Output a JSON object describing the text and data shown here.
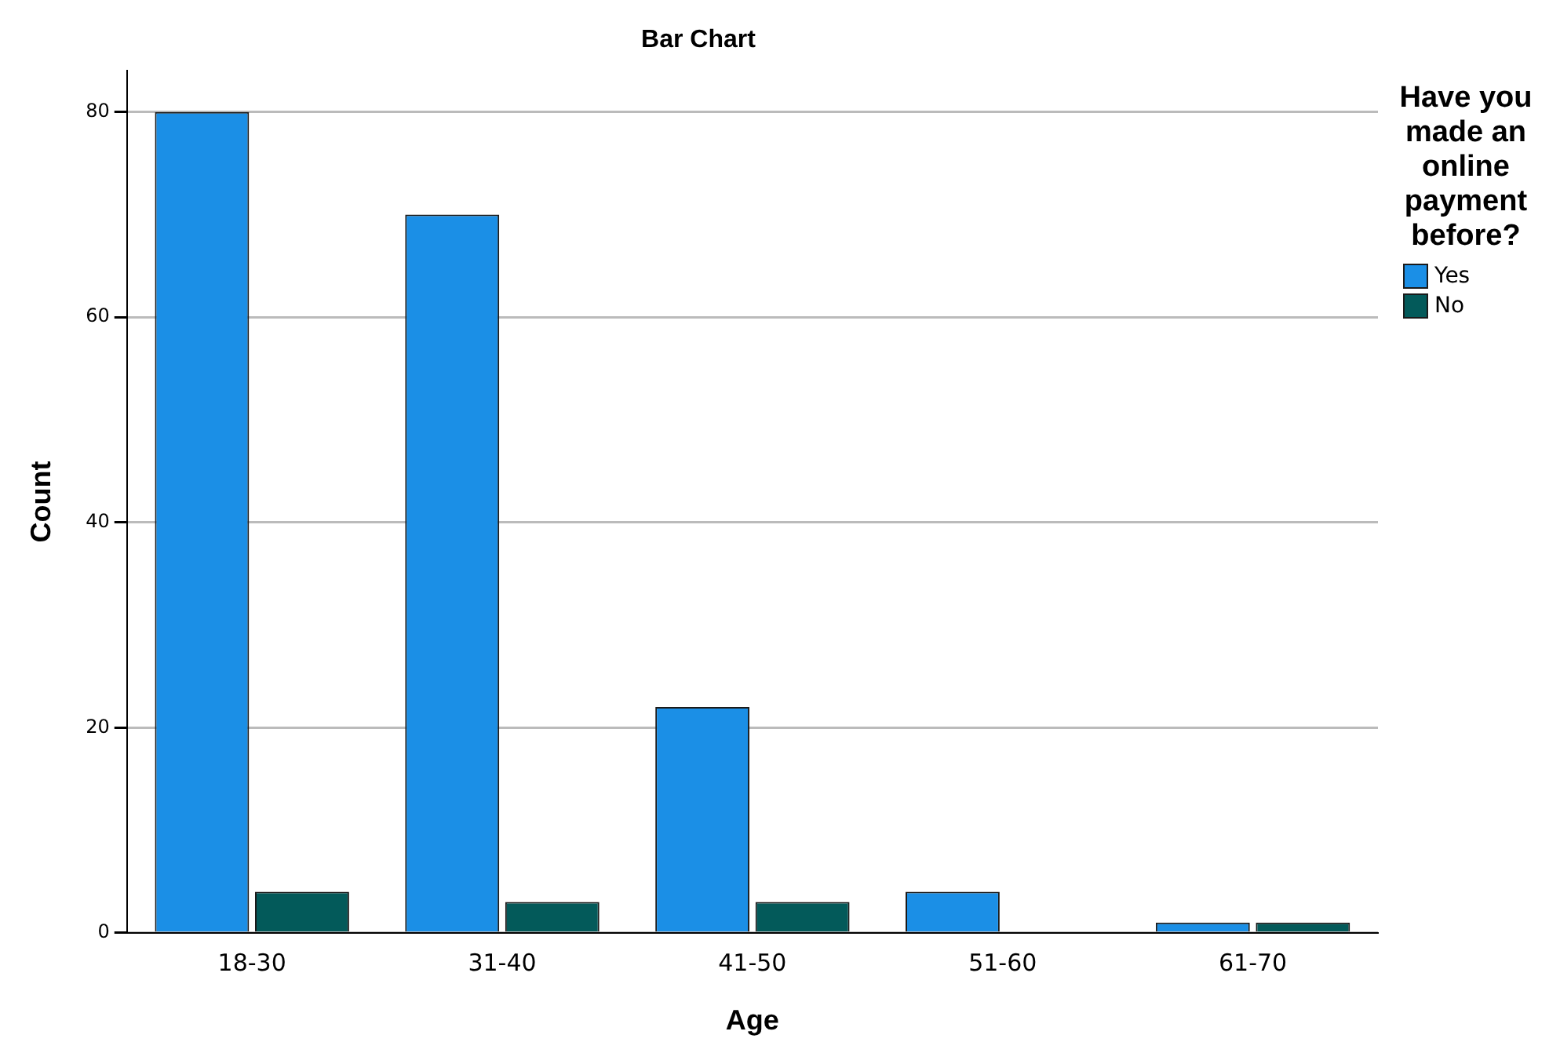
{
  "chart_data": {
    "type": "bar",
    "title": "Bar Chart",
    "xlabel": "Age",
    "ylabel": "Count",
    "legend_title": "Have you made an online payment before?",
    "categories": [
      "18-30",
      "31-40",
      "41-50",
      "51-60",
      "61-70"
    ],
    "series": [
      {
        "name": "Yes",
        "color": "#1b8fe6",
        "values": [
          80,
          70,
          22,
          4,
          1
        ]
      },
      {
        "name": "No",
        "color": "#035a5a",
        "values": [
          4,
          3,
          3,
          null,
          1
        ]
      }
    ],
    "ylim": [
      0,
      84
    ],
    "yticks": [
      0,
      20,
      40,
      60,
      80
    ],
    "grid": "y",
    "legend": "top right"
  }
}
